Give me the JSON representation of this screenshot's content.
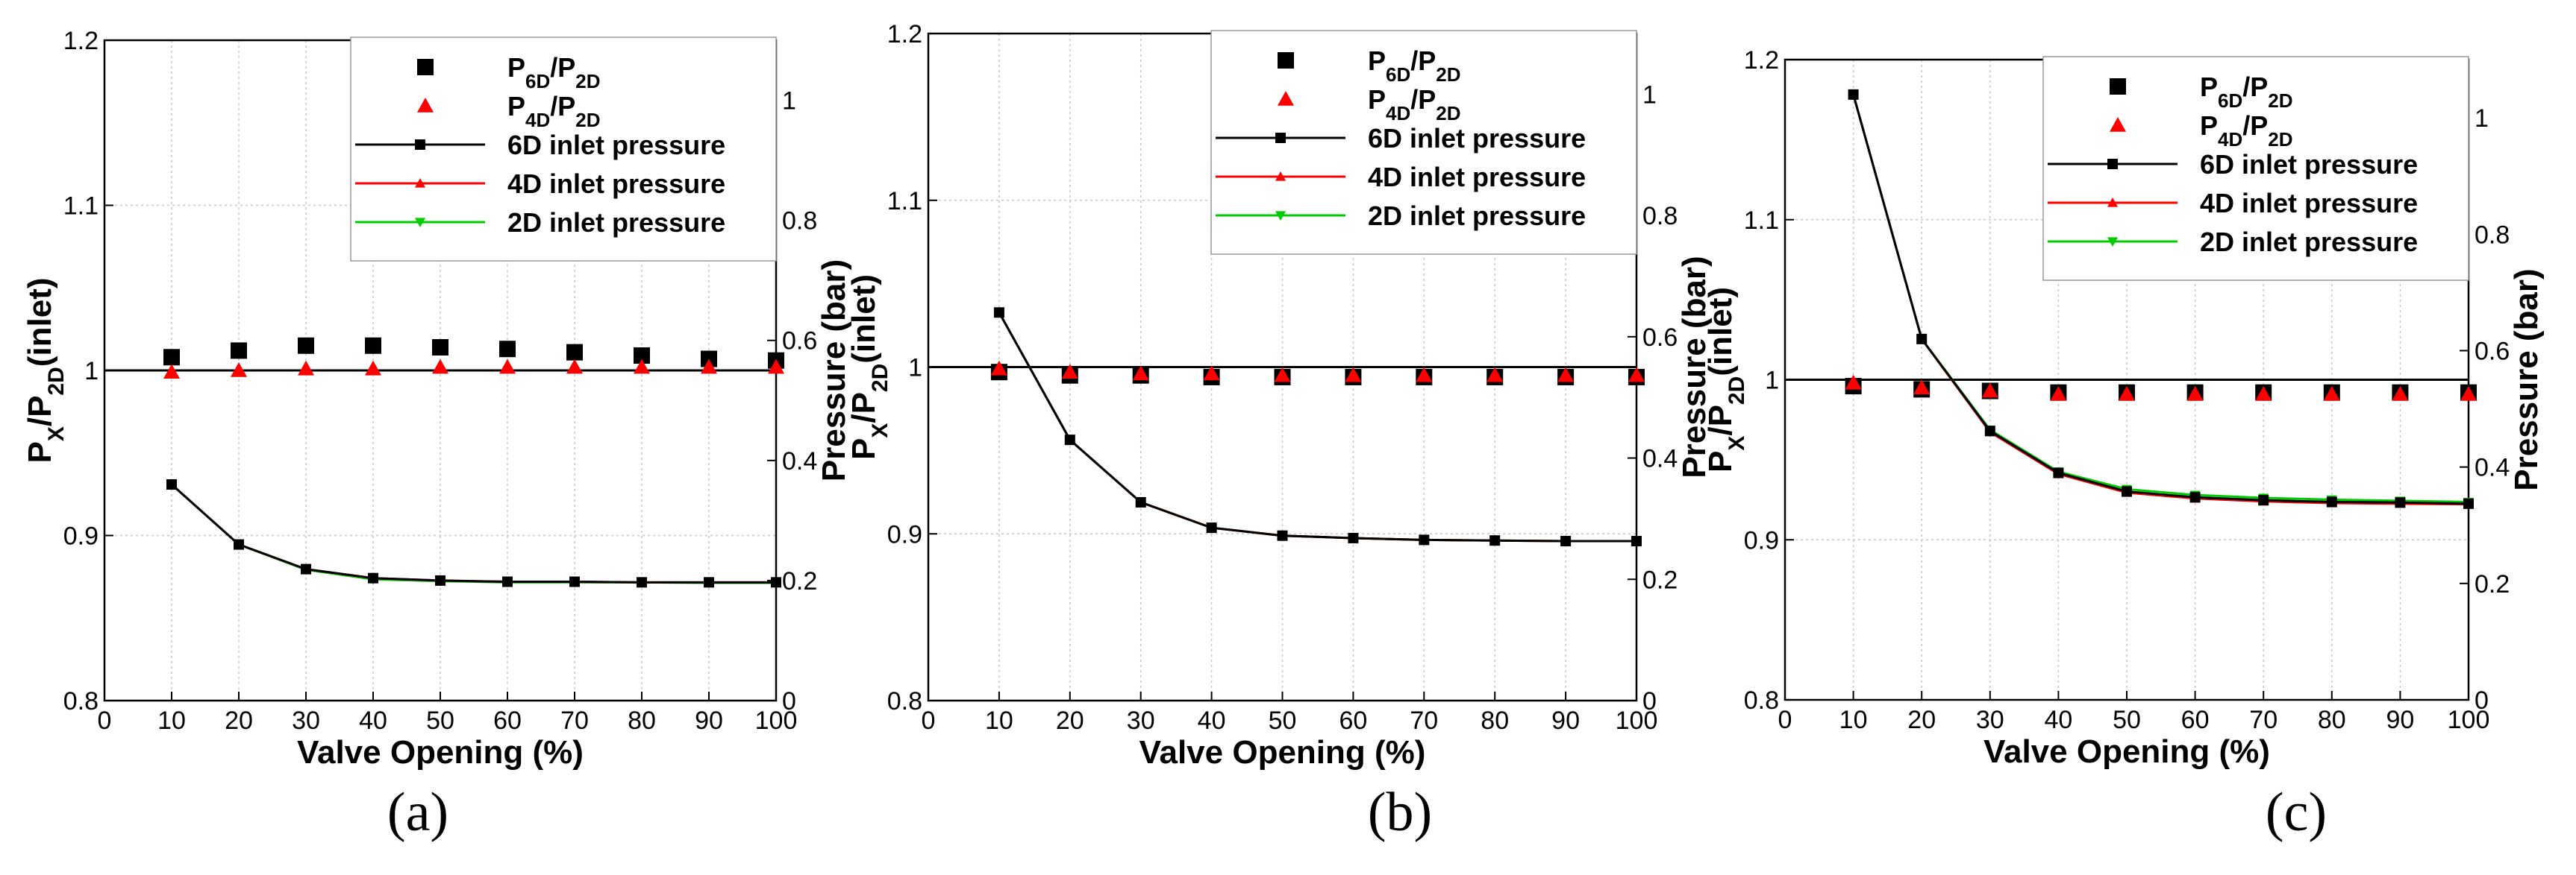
{
  "captions": [
    "(a)",
    "(b)",
    "(c)"
  ],
  "chart_data": [
    {
      "type": "line",
      "caption": "(a)",
      "xlabel": "Valve Opening (%)",
      "ylabel_left": {
        "base": "P",
        "sub1": "X",
        "mid": "/P",
        "sub2": "2D",
        "tail": "(inlet)"
      },
      "ylabel_right": "Pressure (bar)",
      "xlim": [
        0,
        100
      ],
      "xticks": [
        "0",
        "10",
        "20",
        "30",
        "40",
        "50",
        "60",
        "70",
        "80",
        "90",
        "100"
      ],
      "ylim_left": [
        0.8,
        1.2
      ],
      "yticks_left": [
        "0.8",
        "0.9",
        "1",
        "1.1",
        "1.2"
      ],
      "ylim_right": [
        0,
        1.1
      ],
      "yticks_right": [
        "0",
        "0.2",
        "0.4",
        "0.6",
        "0.8",
        "1"
      ],
      "grid": true,
      "legend_position": "top-right",
      "reference_line": 1.0,
      "x": [
        10,
        20,
        30,
        40,
        50,
        60,
        70,
        80,
        90,
        100
      ],
      "ratio_series": [
        {
          "name": "P6D/P2D",
          "label": {
            "p": "P",
            "s1": "6D",
            "m": "/P",
            "s2": "2D"
          },
          "marker": "square",
          "color": "#000000",
          "values": [
            1.008,
            1.012,
            1.015,
            1.015,
            1.014,
            1.013,
            1.011,
            1.009,
            1.007,
            1.006
          ]
        },
        {
          "name": "P4D/P2D",
          "label": {
            "p": "P",
            "s1": "4D",
            "m": "/P",
            "s2": "2D"
          },
          "marker": "triangle",
          "color": "#ff0000",
          "values": [
            0.999,
            1.0,
            1.001,
            1.001,
            1.002,
            1.002,
            1.002,
            1.002,
            1.002,
            1.002
          ]
        }
      ],
      "pressure_series": [
        {
          "name": "6D inlet pressure",
          "marker": "square",
          "color": "#000000",
          "values": [
            0.36,
            0.26,
            0.219,
            0.204,
            0.2,
            0.198,
            0.198,
            0.197,
            0.197,
            0.197
          ]
        },
        {
          "name": "4D inlet pressure",
          "marker": "triangle",
          "color": "#ff0000",
          "values": [
            0.36,
            0.26,
            0.219,
            0.204,
            0.2,
            0.198,
            0.198,
            0.197,
            0.197,
            0.197
          ]
        },
        {
          "name": "2D inlet pressure",
          "marker": "triangle-down",
          "color": "#00cc00",
          "values": [
            0.36,
            0.26,
            0.218,
            0.202,
            0.199,
            0.197,
            0.197,
            0.197,
            0.196,
            0.196
          ]
        }
      ]
    },
    {
      "type": "line",
      "caption": "(b)",
      "xlabel": "Valve Opening (%)",
      "ylabel_left": {
        "base": "P",
        "sub1": "X",
        "mid": "/P",
        "sub2": "2D",
        "tail": "(inlet)"
      },
      "ylabel_right": "Pressure (bar)",
      "xlim": [
        0,
        100
      ],
      "xticks": [
        "0",
        "10",
        "20",
        "30",
        "40",
        "50",
        "60",
        "70",
        "80",
        "90",
        "100"
      ],
      "ylim_left": [
        0.8,
        1.2
      ],
      "yticks_left": [
        "0.8",
        "0.9",
        "1",
        "1.1",
        "1.2"
      ],
      "ylim_right": [
        0,
        1.1
      ],
      "yticks_right": [
        "0",
        "0.2",
        "0.4",
        "0.6",
        "0.8",
        "1"
      ],
      "grid": true,
      "legend_position": "top-right",
      "reference_line": 1.0,
      "x": [
        10,
        20,
        30,
        40,
        50,
        60,
        70,
        80,
        90,
        100
      ],
      "ratio_series": [
        {
          "name": "P6D/P2D",
          "label": {
            "p": "P",
            "s1": "6D",
            "m": "/P",
            "s2": "2D"
          },
          "marker": "square",
          "color": "#000000",
          "values": [
            0.997,
            0.995,
            0.995,
            0.994,
            0.994,
            0.994,
            0.994,
            0.994,
            0.994,
            0.994
          ]
        },
        {
          "name": "P4D/P2D",
          "label": {
            "p": "P",
            "s1": "4D",
            "m": "/P",
            "s2": "2D"
          },
          "marker": "triangle",
          "color": "#ff0000",
          "values": [
            0.999,
            0.997,
            0.996,
            0.996,
            0.995,
            0.995,
            0.995,
            0.995,
            0.995,
            0.995
          ]
        }
      ],
      "pressure_series": [
        {
          "name": "6D inlet pressure",
          "marker": "square",
          "color": "#000000",
          "values": [
            0.64,
            0.43,
            0.327,
            0.285,
            0.272,
            0.268,
            0.265,
            0.264,
            0.263,
            0.263
          ]
        },
        {
          "name": "4D inlet pressure",
          "marker": "triangle",
          "color": "#ff0000",
          "values": [
            0.64,
            0.43,
            0.327,
            0.285,
            0.272,
            0.268,
            0.265,
            0.264,
            0.263,
            0.263
          ]
        },
        {
          "name": "2D inlet pressure",
          "marker": "triangle-down",
          "color": "#00cc00",
          "values": [
            0.64,
            0.43,
            0.327,
            0.285,
            0.272,
            0.268,
            0.265,
            0.264,
            0.263,
            0.263
          ]
        }
      ]
    },
    {
      "type": "line",
      "caption": "(c)",
      "xlabel": "Valve Opening (%)",
      "ylabel_left": {
        "base": "P",
        "sub1": "X",
        "mid": "/P",
        "sub2": "2D",
        "tail": "(inlet)"
      },
      "ylabel_right": "Pressure (bar)",
      "xlim": [
        0,
        100
      ],
      "xticks": [
        "0",
        "10",
        "20",
        "30",
        "40",
        "50",
        "60",
        "70",
        "80",
        "90",
        "100"
      ],
      "ylim_left": [
        0.8,
        1.2
      ],
      "yticks_left": [
        "0.8",
        "0.9",
        "1",
        "1.1",
        "1.2"
      ],
      "ylim_right": [
        0,
        1.1
      ],
      "yticks_right": [
        "0",
        "0.2",
        "0.4",
        "0.6",
        "0.8",
        "1"
      ],
      "grid": true,
      "legend_position": "top-right",
      "reference_line": 1.0,
      "x": [
        10,
        20,
        30,
        40,
        50,
        60,
        70,
        80,
        90,
        100
      ],
      "ratio_series": [
        {
          "name": "P6D/P2D",
          "label": {
            "p": "P",
            "s1": "6D",
            "m": "/P",
            "s2": "2D"
          },
          "marker": "square",
          "color": "#000000",
          "values": [
            0.996,
            0.994,
            0.993,
            0.992,
            0.992,
            0.992,
            0.992,
            0.992,
            0.992,
            0.992
          ]
        },
        {
          "name": "P4D/P2D",
          "label": {
            "p": "P",
            "s1": "4D",
            "m": "/P",
            "s2": "2D"
          },
          "marker": "triangle",
          "color": "#ff0000",
          "values": [
            0.998,
            0.995,
            0.993,
            0.991,
            0.991,
            0.991,
            0.991,
            0.991,
            0.991,
            0.991
          ]
        }
      ],
      "pressure_series": [
        {
          "name": "6D inlet pressure",
          "marker": "square",
          "color": "#000000",
          "values": [
            1.04,
            0.62,
            0.462,
            0.39,
            0.358,
            0.348,
            0.343,
            0.34,
            0.339,
            0.337
          ]
        },
        {
          "name": "4D inlet pressure",
          "marker": "triangle",
          "color": "#ff0000",
          "values": [
            1.04,
            0.62,
            0.46,
            0.388,
            0.356,
            0.346,
            0.341,
            0.338,
            0.337,
            0.336
          ]
        },
        {
          "name": "2D inlet pressure",
          "marker": "triangle-down",
          "color": "#00cc00",
          "values": [
            1.04,
            0.62,
            0.464,
            0.392,
            0.362,
            0.352,
            0.347,
            0.344,
            0.342,
            0.34
          ]
        }
      ]
    }
  ]
}
